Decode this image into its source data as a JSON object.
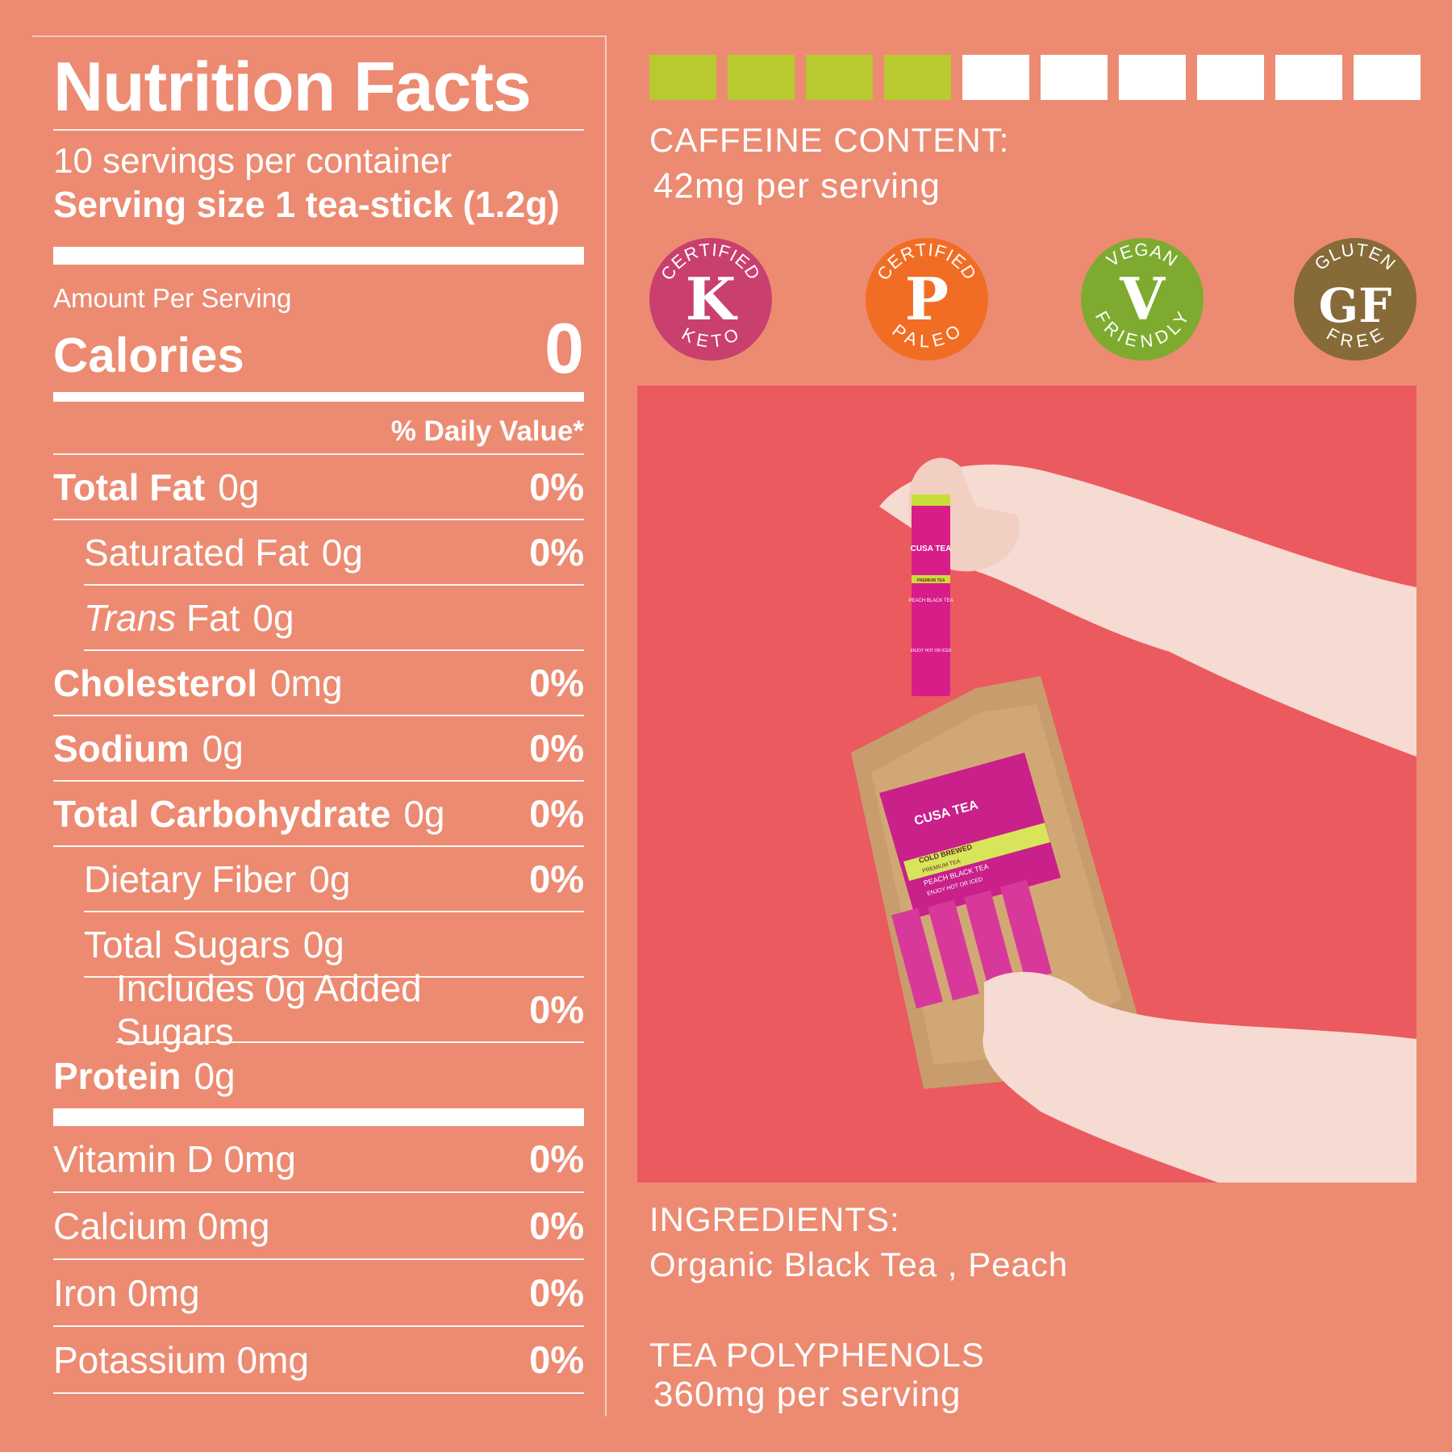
{
  "nutrition": {
    "title": "Nutrition Facts",
    "servings_per_container": "10 servings per container",
    "serving_size": "Serving size 1 tea-stick (1.2g)",
    "amount_per_serving": "Amount Per Serving",
    "calories_label": "Calories",
    "calories_value": "0",
    "daily_value_header": "% Daily Value*",
    "rows": [
      {
        "name": "Total Fat",
        "amount": "0g",
        "dv": "0%"
      },
      {
        "name": "Saturated Fat",
        "amount": "0g",
        "dv": "0%"
      },
      {
        "name_italic": "Trans",
        "name": " Fat",
        "amount": "0g",
        "dv": ""
      },
      {
        "name": "Cholesterol",
        "amount": "0mg",
        "dv": "0%"
      },
      {
        "name": "Sodium",
        "amount": "0g",
        "dv": "0%"
      },
      {
        "name": "Total Carbohydrate",
        "amount": "0g",
        "dv": "0%"
      },
      {
        "name": "Dietary Fiber",
        "amount": "0g",
        "dv": "0%"
      },
      {
        "name": "Total Sugars",
        "amount": "0g",
        "dv": ""
      },
      {
        "name": "Includes 0g Added Sugars",
        "dv": "0%"
      },
      {
        "name": "Protein",
        "amount": "0g",
        "dv": ""
      }
    ],
    "vitamins": [
      {
        "label": "Vitamin D 0mg",
        "dv": "0%"
      },
      {
        "label": "Calcium 0mg",
        "dv": "0%"
      },
      {
        "label": "Iron 0mg",
        "dv": "0%"
      },
      {
        "label": "Potassium 0mg",
        "dv": "0%"
      }
    ]
  },
  "caffeine": {
    "label": "CAFFEINE CONTENT:",
    "value": "42mg per serving",
    "level": 4,
    "scale_max": 10,
    "filled_color": "#b9c930",
    "empty_color": "#ffffff"
  },
  "badges": [
    {
      "top": "CERTIFIED",
      "letter": "K",
      "bottom": "KETO",
      "color": "#c93f6e",
      "icon": "keto-badge-icon"
    },
    {
      "top": "CERTIFIED",
      "letter": "P",
      "bottom": "PALEO",
      "color": "#f26d24",
      "icon": "paleo-badge-icon"
    },
    {
      "top": "VEGAN",
      "letter": "V",
      "bottom": "FRIENDLY",
      "color": "#7eab2f",
      "icon": "vegan-badge-icon"
    },
    {
      "top": "GLUTEN",
      "letter": "GF",
      "bottom": "FREE",
      "color": "#866a38",
      "icon": "gluten-free-badge-icon"
    }
  ],
  "photo": {
    "background_color": "#eb5a5f",
    "stick": {
      "brand": "CUSA TEA",
      "subtitle": "PREMIUM TEA",
      "flavor": "PEACH BLACK TEA",
      "note": "ENJOY HOT OR ICED"
    },
    "pouch": {
      "brand": "CUSA TEA",
      "line1": "COLD BREWED",
      "line2": "PREMIUM TEA",
      "line3": "PEACH BLACK TEA",
      "line4": "ENJOY HOT OR ICED"
    }
  },
  "ingredients": {
    "label": "INGREDIENTS:",
    "value": "Organic Black Tea , Peach"
  },
  "polyphenols": {
    "label": "TEA POLYPHENOLS",
    "value": "360mg per serving"
  }
}
